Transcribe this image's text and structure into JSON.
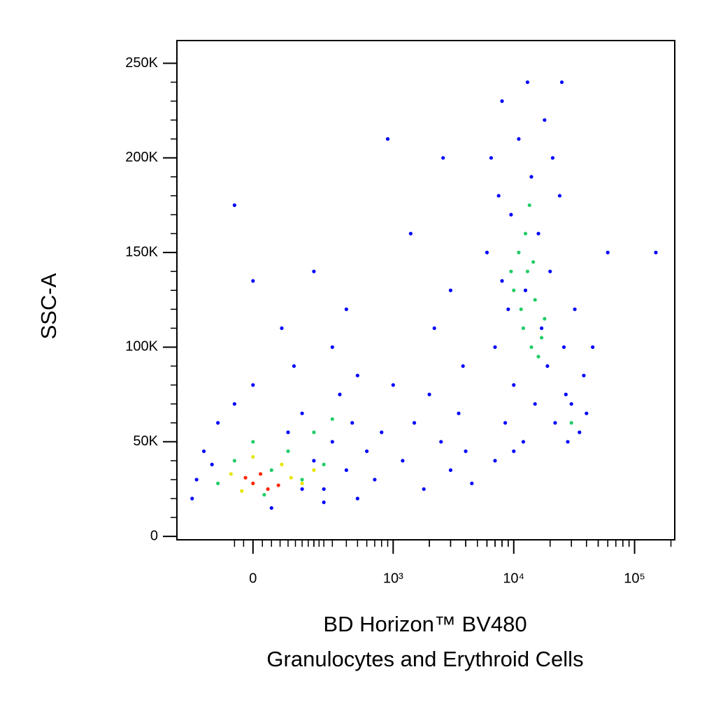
{
  "chart_data": {
    "type": "scatter",
    "ylabel": "SSC-A",
    "xlabel": [
      "BD Horizon™ BV480",
      "Granulocytes and Erythroid Cells"
    ],
    "xscale": "biexponential",
    "xlim": [
      -280,
      215000
    ],
    "xticks": [
      0,
      {
        "value": 1000,
        "label": "10³"
      },
      {
        "value": 10000,
        "label": "10⁴"
      },
      {
        "value": 100000,
        "label": "10⁵"
      }
    ],
    "ylim": [
      -1800,
      262000
    ],
    "yticks": [
      0,
      {
        "value": 50000,
        "label": "50K"
      },
      {
        "value": 100000,
        "label": "100K"
      },
      {
        "value": 150000,
        "label": "150K"
      },
      {
        "value": 200000,
        "label": "200K"
      },
      {
        "value": 250000,
        "label": "250K"
      }
    ],
    "series": [
      {
        "color": "#0000ff",
        "x": [
          -200,
          -150,
          -100,
          -50,
          0,
          50,
          100,
          150,
          200,
          250,
          300,
          350,
          400,
          450,
          500,
          600,
          700,
          -180,
          120,
          300,
          80,
          400,
          200,
          -50,
          0,
          500,
          800,
          250,
          -120,
          150,
          1200,
          1500,
          1800,
          2000,
          2500,
          3000,
          3500,
          4000,
          1000,
          2200,
          3000,
          1400,
          4500,
          3800,
          900,
          2600,
          6000,
          6500,
          7000,
          7500,
          8000,
          8500,
          9000,
          9500,
          10000,
          11000,
          12000,
          13000,
          14000,
          15000,
          16000,
          17000,
          18000,
          19000,
          20000,
          22000,
          24000,
          26000,
          28000,
          30000,
          32000,
          35000,
          38000,
          40000,
          25000,
          7000,
          10000,
          45000,
          60000,
          150000,
          12500,
          21000,
          8000,
          27000
        ],
        "y": [
          20000,
          45000,
          60000,
          70000,
          80000,
          15000,
          55000,
          65000,
          40000,
          25000,
          50000,
          75000,
          35000,
          60000,
          20000,
          45000,
          30000,
          30000,
          90000,
          100000,
          110000,
          120000,
          140000,
          175000,
          135000,
          85000,
          55000,
          18000,
          38000,
          25000,
          40000,
          60000,
          25000,
          75000,
          50000,
          35000,
          65000,
          45000,
          80000,
          110000,
          130000,
          160000,
          28000,
          90000,
          210000,
          200000,
          150000,
          200000,
          100000,
          180000,
          230000,
          60000,
          120000,
          170000,
          80000,
          210000,
          50000,
          240000,
          190000,
          70000,
          160000,
          110000,
          220000,
          90000,
          140000,
          60000,
          180000,
          100000,
          50000,
          70000,
          120000,
          55000,
          85000,
          65000,
          240000,
          40000,
          45000,
          100000,
          150000,
          150000,
          130000,
          200000,
          135000,
          75000
        ]
      },
      {
        "color": "#22cc66",
        "x": [
          -50,
          0,
          50,
          100,
          150,
          200,
          -100,
          250,
          300,
          30,
          10000,
          11000,
          12000,
          13000,
          14000,
          15000,
          16000,
          12500,
          11500,
          18000,
          14500,
          30000,
          9500,
          17000,
          13500
        ],
        "y": [
          40000,
          50000,
          35000,
          45000,
          30000,
          55000,
          28000,
          38000,
          62000,
          22000,
          130000,
          150000,
          110000,
          140000,
          100000,
          125000,
          95000,
          160000,
          120000,
          115000,
          145000,
          60000,
          140000,
          105000,
          175000
        ]
      },
      {
        "color": "#e6e600",
        "x": [
          -60,
          80,
          150,
          0,
          -30,
          110,
          200
        ],
        "y": [
          33000,
          38000,
          28000,
          42000,
          24000,
          31000,
          35000
        ]
      },
      {
        "color": "#ff2200",
        "x": [
          0,
          40,
          -20,
          70,
          20
        ],
        "y": [
          28000,
          25000,
          31000,
          27000,
          33000
        ]
      }
    ]
  }
}
